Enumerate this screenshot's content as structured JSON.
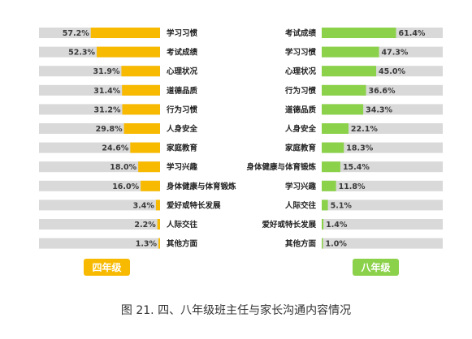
{
  "caption": "图 21. 四、八年级班主任与家长沟通内容情况",
  "colors": {
    "grade4": "#F7BA00",
    "grade8": "#8BD14A",
    "track": "#D9D9D9",
    "label": "#222222"
  },
  "chart_data": [
    {
      "type": "bar",
      "orientation": "horizontal",
      "direction": "right-to-left",
      "legend": "四年级",
      "unit": "%",
      "xlim": [
        0,
        100
      ],
      "categories": [
        "学习习惯",
        "考试成绩",
        "心理状况",
        "道德品质",
        "行为习惯",
        "人身安全",
        "家庭教育",
        "学习兴趣",
        "身体健康与体育锻炼",
        "爱好或特长发展",
        "人际交往",
        "其他方面"
      ],
      "values": [
        57.2,
        52.3,
        31.9,
        31.4,
        31.2,
        29.8,
        24.6,
        18.0,
        16.0,
        3.4,
        2.2,
        1.3
      ],
      "value_labels": [
        "57.2%",
        "52.3%",
        "31.9%",
        "31.4%",
        "31.2%",
        "29.8%",
        "24.6%",
        "18.0%",
        "16.0%",
        "3.4%",
        "2.2%",
        "1.3%"
      ]
    },
    {
      "type": "bar",
      "orientation": "horizontal",
      "direction": "left-to-right",
      "legend": "八年级",
      "unit": "%",
      "xlim": [
        0,
        100
      ],
      "categories": [
        "考试成绩",
        "学习习惯",
        "心理状况",
        "行为习惯",
        "道德品质",
        "人身安全",
        "家庭教育",
        "身体健康与体育锻炼",
        "学习兴趣",
        "人际交往",
        "爱好或特长发展",
        "其他方面"
      ],
      "values": [
        61.4,
        47.3,
        45.0,
        36.6,
        34.3,
        22.1,
        18.3,
        15.4,
        11.8,
        5.1,
        1.4,
        1.0
      ],
      "value_labels": [
        "61.4%",
        "47.3%",
        "45.0%",
        "36.6%",
        "34.3%",
        "22.1%",
        "18.3%",
        "15.4%",
        "11.8%",
        "5.1%",
        "1.4%",
        "1.0%"
      ]
    }
  ]
}
